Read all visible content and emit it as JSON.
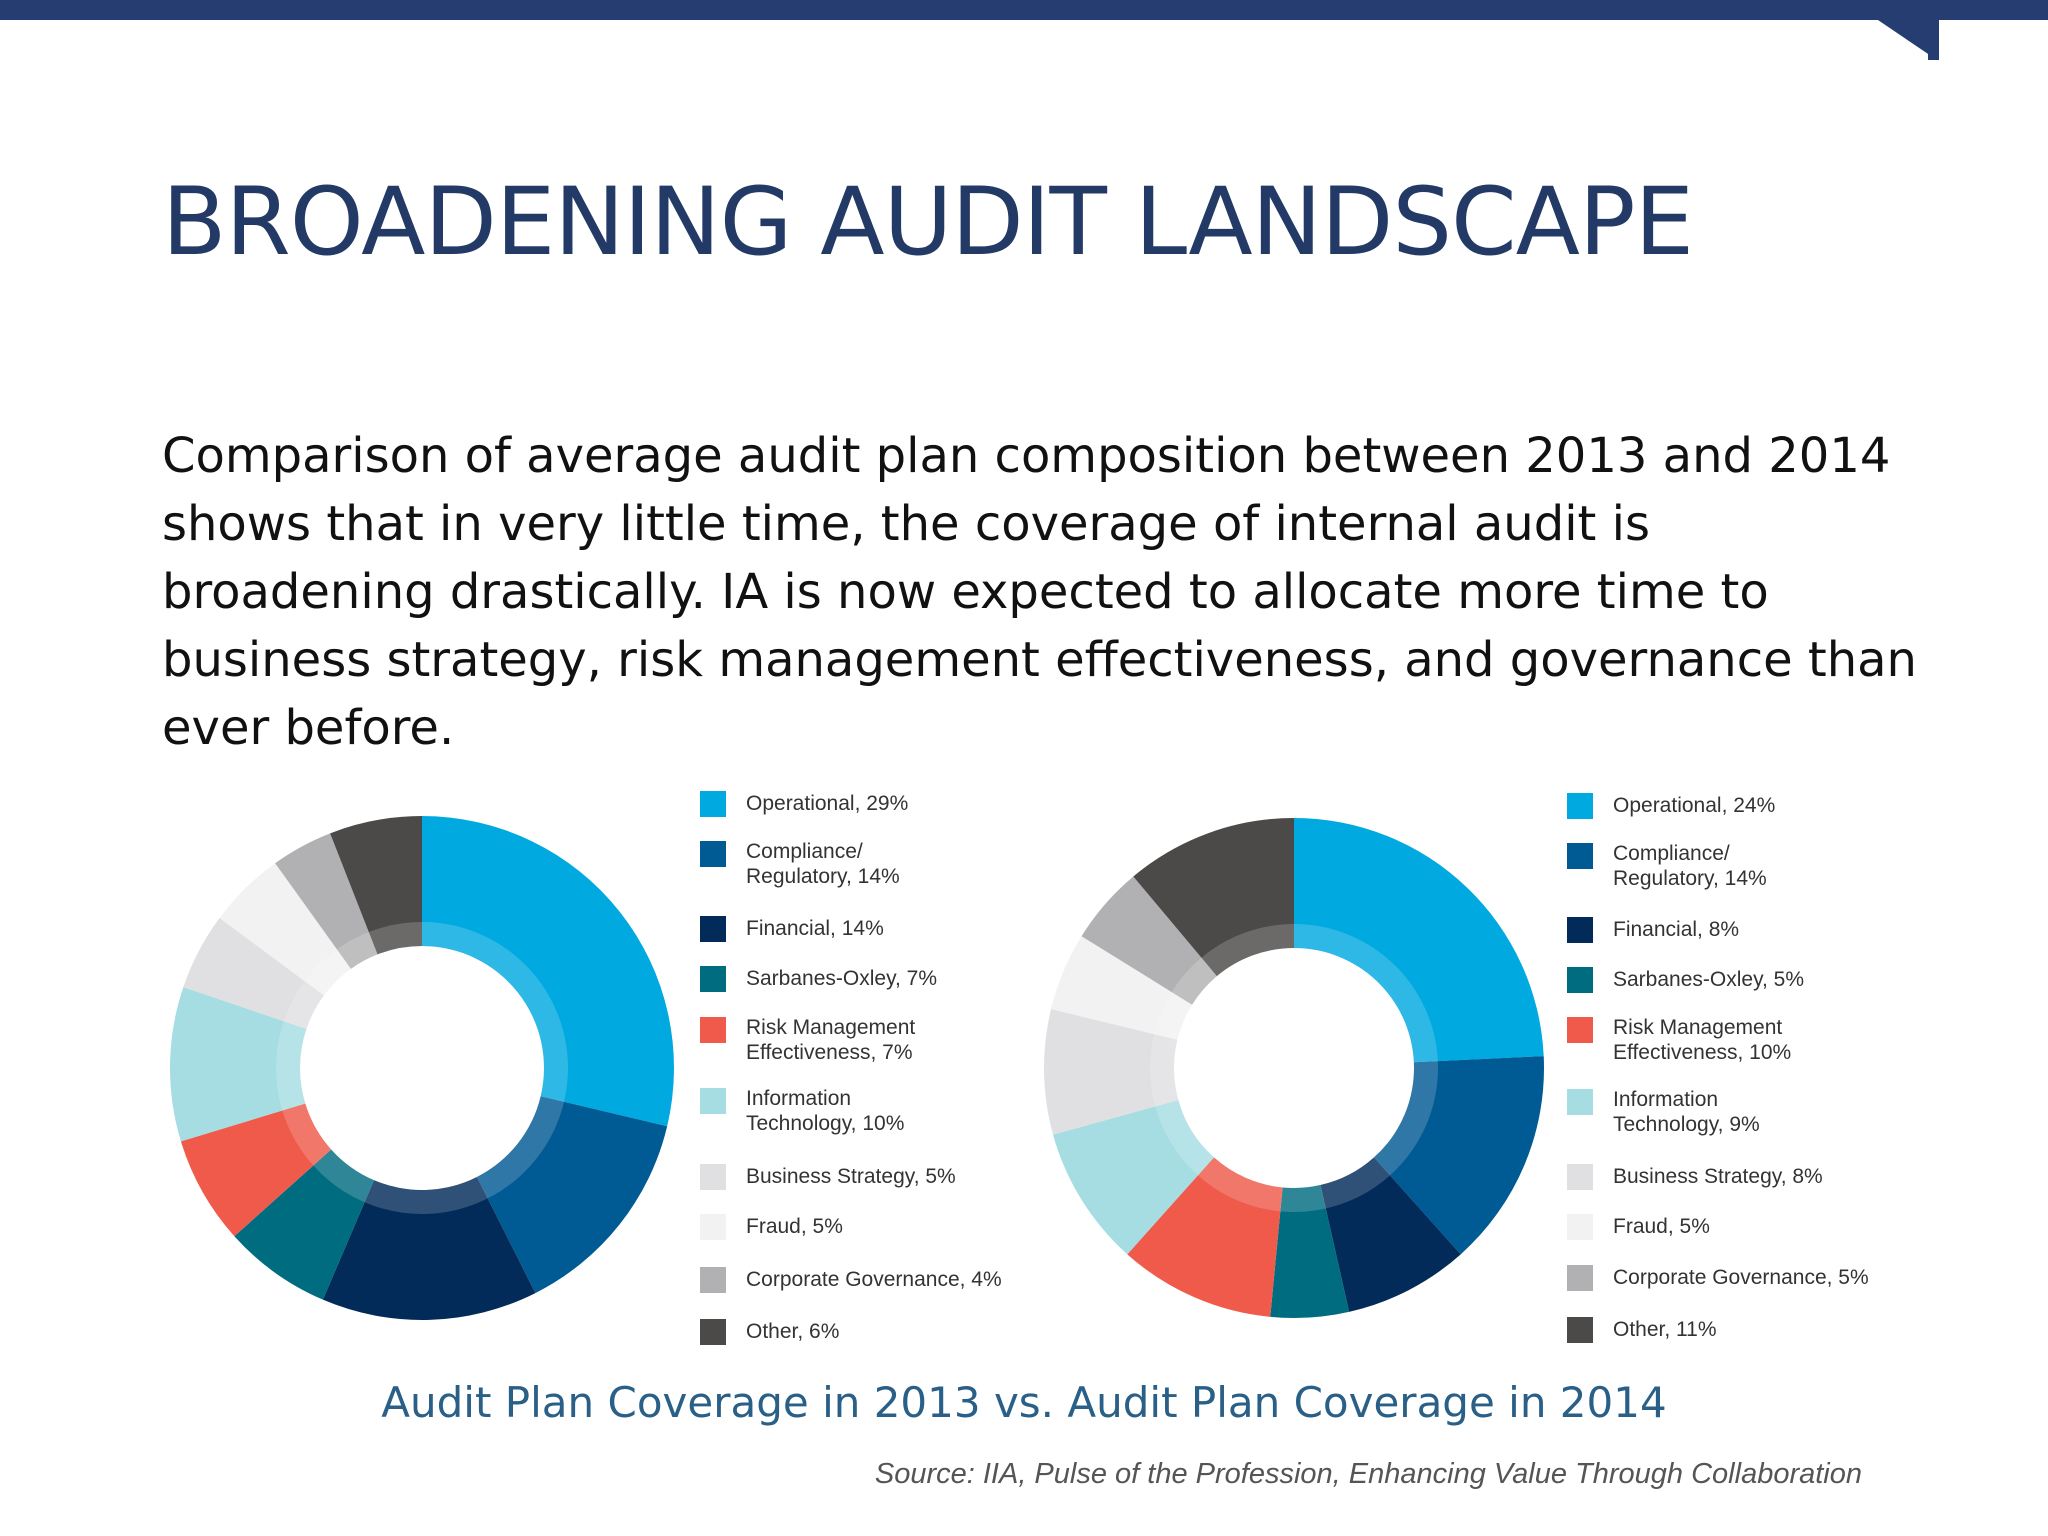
{
  "slide": {
    "title": "BROADENING AUDIT LANDSCAPE",
    "body": "Comparison of average audit plan composition between 2013 and 2014 shows that in very little time, the coverage of internal audit is broadening drastically. IA is now expected to allocate more time to business strategy, risk management effectiveness, and governance than ever before.",
    "caption": "Audit Plan Coverage in 2013 vs. Audit Plan Coverage in 2014",
    "source": "Source: IIA, Pulse of the Profession, Enhancing Value Through Collaboration",
    "accent_color": "#253d70"
  },
  "chart_data": [
    {
      "type": "pie",
      "donut": true,
      "title": "",
      "slices": [
        {
          "label": "Operational, 29%",
          "value": 29,
          "color": "#00a9e0"
        },
        {
          "label": "Compliance/\nRegulatory, 14%",
          "value": 14,
          "color": "#005a93"
        },
        {
          "label": "Financial, 14%",
          "value": 14,
          "color": "#032b59"
        },
        {
          "label": "Sarbanes-Oxley, 7%",
          "value": 7,
          "color": "#006c80"
        },
        {
          "label": "Risk Management\nEffectiveness, 7%",
          "value": 7,
          "color": "#ef5a4b"
        },
        {
          "label": "Information\nTechnology, 10%",
          "value": 10,
          "color": "#a6dde2"
        },
        {
          "label": "Business Strategy, 5%",
          "value": 5,
          "color": "#e0e0e2"
        },
        {
          "label": "Fraud, 5%",
          "value": 5,
          "color": "#f2f2f3"
        },
        {
          "label": "Corporate Governance, 4%",
          "value": 4,
          "color": "#b1b1b3"
        },
        {
          "label": "Other, 6%",
          "value": 6,
          "color": "#4b4a48"
        }
      ]
    },
    {
      "type": "pie",
      "donut": true,
      "title": "",
      "slices": [
        {
          "label": "Operational, 24%",
          "value": 24,
          "color": "#00a9e0"
        },
        {
          "label": "Compliance/\nRegulatory, 14%",
          "value": 14,
          "color": "#005a93"
        },
        {
          "label": "Financial, 8%",
          "value": 8,
          "color": "#032b59"
        },
        {
          "label": "Sarbanes-Oxley, 5%",
          "value": 5,
          "color": "#006c80"
        },
        {
          "label": "Risk Management\nEffectiveness, 10%",
          "value": 10,
          "color": "#ef5a4b"
        },
        {
          "label": "Information\nTechnology, 9%",
          "value": 9,
          "color": "#a6dde2"
        },
        {
          "label": "Business Strategy, 8%",
          "value": 8,
          "color": "#e0e0e2"
        },
        {
          "label": "Fraud, 5%",
          "value": 5,
          "color": "#f2f2f3"
        },
        {
          "label": "Corporate Governance, 5%",
          "value": 5,
          "color": "#b1b1b3"
        },
        {
          "label": "Other, 11%",
          "value": 11,
          "color": "#4b4a48"
        }
      ]
    }
  ]
}
